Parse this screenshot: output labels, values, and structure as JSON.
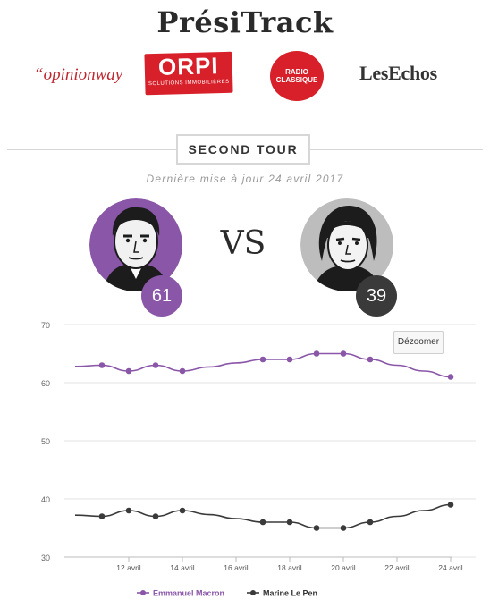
{
  "header": {
    "title": "PrésiTrack"
  },
  "logos": {
    "opinionway": "“opinionway",
    "orpi": "ORPI",
    "orpi_sub": "SOLUTIONS IMMOBILIÈRES",
    "radio_line1": "RADIO",
    "radio_line2": "CLASSIQUE",
    "lesechos": "LesEchos"
  },
  "round_label": "SECOND TOUR",
  "updated_text": "Dernière mise à jour 24 avril 2017",
  "candidates": [
    {
      "score": "61",
      "color": "#8a56a8"
    },
    {
      "score": "39",
      "color": "#3a3a3a"
    }
  ],
  "vs_label": "VS",
  "zoom_button": "Dézoomer",
  "chart_data": {
    "type": "line",
    "x": [
      10,
      11,
      12,
      13,
      14,
      15,
      16,
      17,
      18,
      19,
      20,
      21,
      22,
      23,
      24
    ],
    "x_unit": "avril",
    "xtick_labels": [
      "12 avril",
      "14 avril",
      "16 avril",
      "18 avril",
      "20 avril",
      "22 avril",
      "24 avril"
    ],
    "xtick_values": [
      12,
      14,
      16,
      18,
      20,
      22,
      24
    ],
    "yticks": [
      30,
      40,
      50,
      60,
      70
    ],
    "ylim": [
      30,
      70
    ],
    "xlim": [
      10,
      24
    ],
    "grid": true,
    "legend_placement": "bottom-center",
    "series": [
      {
        "name": "Emmanuel Macron",
        "color": "#8a56a8",
        "values": [
          62.8,
          63,
          62,
          63,
          62,
          62.7,
          63.4,
          64,
          64,
          65,
          65,
          64,
          63,
          62,
          61
        ],
        "marked": [
          false,
          true,
          true,
          true,
          true,
          false,
          false,
          true,
          true,
          true,
          true,
          true,
          false,
          false,
          true
        ]
      },
      {
        "name": "Marine Le Pen",
        "color": "#3a3a3a",
        "values": [
          37.2,
          37,
          38,
          37,
          38,
          37.3,
          36.6,
          36,
          36,
          35,
          35,
          36,
          37,
          38,
          39
        ],
        "marked": [
          false,
          true,
          true,
          true,
          true,
          false,
          false,
          true,
          true,
          true,
          true,
          true,
          false,
          false,
          true
        ]
      }
    ]
  }
}
